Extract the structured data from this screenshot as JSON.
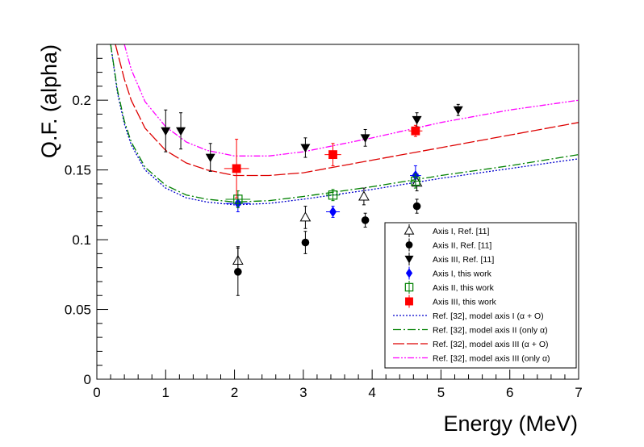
{
  "chart_data": {
    "type": "scatter",
    "xlabel": "Energy (MeV)",
    "ylabel": "Q.F. (alpha)",
    "xlim": [
      0,
      7
    ],
    "ylim": [
      0,
      0.24
    ],
    "x_ticks": [
      "0",
      "1",
      "2",
      "3",
      "4",
      "5",
      "6",
      "7"
    ],
    "y_ticks": [
      "0",
      "0.05",
      "0.1",
      "0.15",
      "0.2"
    ],
    "y_tick_values": [
      0,
      0.05,
      0.1,
      0.15,
      0.2
    ],
    "legend_position": "bottom-right",
    "series": [
      {
        "name": "Axis I, Ref. [11]",
        "marker": "open-triangle-up",
        "color": "#000000",
        "points": [
          {
            "x": 2.05,
            "y": 0.085,
            "yerr": 0.01
          },
          {
            "x": 3.03,
            "y": 0.116,
            "yerr": 0.008
          },
          {
            "x": 3.88,
            "y": 0.131,
            "yerr": 0.006
          },
          {
            "x": 4.65,
            "y": 0.141,
            "yerr": 0.006
          }
        ]
      },
      {
        "name": "Axis II, Ref. [11]",
        "marker": "filled-circle",
        "color": "#000000",
        "points": [
          {
            "x": 2.05,
            "y": 0.077,
            "yerr": 0.017
          },
          {
            "x": 3.03,
            "y": 0.098,
            "yerr": 0.008
          },
          {
            "x": 3.9,
            "y": 0.114,
            "yerr": 0.005
          },
          {
            "x": 4.65,
            "y": 0.124,
            "yerr": 0.005
          }
        ]
      },
      {
        "name": "Axis III, Ref. [11]",
        "marker": "filled-triangle-down",
        "color": "#000000",
        "points": [
          {
            "x": 1.0,
            "y": 0.178,
            "yerr": 0.015
          },
          {
            "x": 1.22,
            "y": 0.178,
            "yerr": 0.013
          },
          {
            "x": 1.65,
            "y": 0.159,
            "yerr": 0.01
          },
          {
            "x": 3.03,
            "y": 0.166,
            "yerr": 0.007
          },
          {
            "x": 3.9,
            "y": 0.173,
            "yerr": 0.006
          },
          {
            "x": 4.65,
            "y": 0.186,
            "yerr": 0.005
          },
          {
            "x": 5.25,
            "y": 0.193,
            "yerr": 0.004
          }
        ]
      },
      {
        "name": "Axis I, this work",
        "marker": "filled-diamond",
        "color": "#0000ff",
        "points": [
          {
            "x": 2.05,
            "y": 0.126,
            "yerr": 0.006,
            "xerr": 0.18
          },
          {
            "x": 3.43,
            "y": 0.12,
            "yerr": 0.004,
            "xerr": 0.1
          },
          {
            "x": 4.63,
            "y": 0.146,
            "yerr": 0.007,
            "xerr": 0.08
          }
        ]
      },
      {
        "name": "Axis II, this work",
        "marker": "open-square",
        "color": "#008000",
        "points": [
          {
            "x": 2.05,
            "y": 0.129,
            "yerr": 0.006,
            "xerr": 0.18
          },
          {
            "x": 3.43,
            "y": 0.132,
            "yerr": 0.004,
            "xerr": 0.1
          },
          {
            "x": 4.63,
            "y": 0.142,
            "yerr": 0.005,
            "xerr": 0.08
          }
        ]
      },
      {
        "name": "Axis III, this work",
        "marker": "filled-square",
        "color": "#ff0000",
        "points": [
          {
            "x": 2.03,
            "y": 0.151,
            "yerr": 0.021,
            "xerr": 0.18
          },
          {
            "x": 3.43,
            "y": 0.161,
            "yerr": 0.008,
            "xerr": 0.12
          },
          {
            "x": 4.63,
            "y": 0.178,
            "yerr": 0.004,
            "xerr": 0.1
          }
        ]
      }
    ],
    "model_curves": [
      {
        "name": "Ref. [32], model axis I (α + O)",
        "color": "#0000cc",
        "dash": "2,2",
        "points": [
          [
            0.2,
            0.24
          ],
          [
            0.3,
            0.205
          ],
          [
            0.4,
            0.183
          ],
          [
            0.5,
            0.168
          ],
          [
            0.7,
            0.15
          ],
          [
            1.0,
            0.137
          ],
          [
            1.3,
            0.13
          ],
          [
            1.6,
            0.127
          ],
          [
            2.0,
            0.125
          ],
          [
            2.5,
            0.126
          ],
          [
            3.0,
            0.129
          ],
          [
            4.0,
            0.136
          ],
          [
            5.0,
            0.144
          ],
          [
            6.0,
            0.151
          ],
          [
            7.0,
            0.158
          ]
        ]
      },
      {
        "name": "Ref. [32], model axis II (only α)",
        "color": "#008000",
        "dash": "10,3,2,3",
        "points": [
          [
            0.2,
            0.24
          ],
          [
            0.3,
            0.207
          ],
          [
            0.4,
            0.185
          ],
          [
            0.5,
            0.17
          ],
          [
            0.7,
            0.152
          ],
          [
            1.0,
            0.139
          ],
          [
            1.3,
            0.132
          ],
          [
            1.6,
            0.129
          ],
          [
            2.0,
            0.127
          ],
          [
            2.5,
            0.128
          ],
          [
            3.0,
            0.131
          ],
          [
            4.0,
            0.138
          ],
          [
            5.0,
            0.146
          ],
          [
            6.0,
            0.153
          ],
          [
            7.0,
            0.161
          ]
        ]
      },
      {
        "name": "Ref. [32], model axis III (α + O)",
        "color": "#dd0000",
        "dash": "14,3",
        "points": [
          [
            0.27,
            0.24
          ],
          [
            0.4,
            0.215
          ],
          [
            0.5,
            0.2
          ],
          [
            0.7,
            0.18
          ],
          [
            1.0,
            0.164
          ],
          [
            1.3,
            0.155
          ],
          [
            1.6,
            0.15
          ],
          [
            2.0,
            0.146
          ],
          [
            2.5,
            0.146
          ],
          [
            3.0,
            0.148
          ],
          [
            4.0,
            0.157
          ],
          [
            5.0,
            0.166
          ],
          [
            6.0,
            0.175
          ],
          [
            7.0,
            0.184
          ]
        ]
      },
      {
        "name": "Ref. [32], model axis III (only α)",
        "color": "#ff00ff",
        "dash": "8,2,2,2,2,2",
        "points": [
          [
            0.4,
            0.24
          ],
          [
            0.5,
            0.222
          ],
          [
            0.7,
            0.199
          ],
          [
            1.0,
            0.181
          ],
          [
            1.3,
            0.17
          ],
          [
            1.6,
            0.164
          ],
          [
            2.0,
            0.16
          ],
          [
            2.5,
            0.16
          ],
          [
            3.0,
            0.163
          ],
          [
            4.0,
            0.173
          ],
          [
            5.0,
            0.184
          ],
          [
            6.0,
            0.193
          ],
          [
            7.0,
            0.2
          ]
        ]
      }
    ]
  }
}
